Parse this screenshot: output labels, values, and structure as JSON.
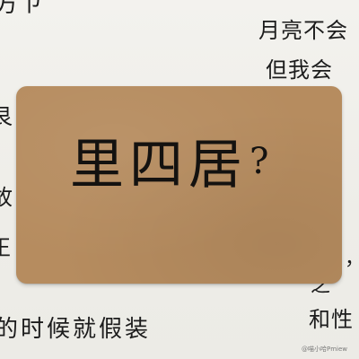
{
  "photo": {
    "background_color": "#f1f0ec",
    "card_color": "#b68c5f",
    "ink_color": "#1c1c1c"
  },
  "card": {
    "main_text": "里四居",
    "question_mark": "?"
  },
  "background_text": {
    "top_left": "方ㄗ",
    "top_right": "月亮不会",
    "right_2": "但我会",
    "left_1": "艮",
    "left_2": "故",
    "left_3": "正",
    "right_3": "，",
    "right_4": "之",
    "right_5": "和性",
    "bottom": "的时候就假装"
  },
  "watermark": "@喵小哈Pmiew"
}
